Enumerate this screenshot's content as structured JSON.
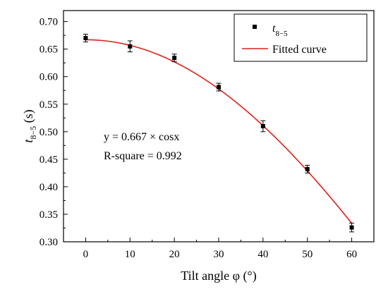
{
  "chart_data": {
    "type": "scatter",
    "x": [
      0,
      10,
      20,
      30,
      40,
      50,
      60
    ],
    "xlim": [
      -5,
      65
    ],
    "ylim": [
      0.3,
      0.72
    ],
    "xticks": [
      0,
      10,
      20,
      30,
      40,
      50,
      60
    ],
    "yticks": [
      0.3,
      0.35,
      0.4,
      0.45,
      0.5,
      0.55,
      0.6,
      0.65,
      0.7
    ],
    "xtick_labels": [
      "0",
      "10",
      "20",
      "30",
      "40",
      "50",
      "60"
    ],
    "ytick_labels": [
      "0.30",
      "0.35",
      "0.40",
      "0.45",
      "0.50",
      "0.55",
      "0.60",
      "0.65",
      "0.70"
    ],
    "xlabel": "Tilt angle φ (°)",
    "ylabel_main": "t",
    "ylabel_sub": "8−5",
    "ylabel_unit": " (s)",
    "grid": false,
    "legend_position": "top-right",
    "series": [
      {
        "name": "t",
        "name_sub": "8−5",
        "kind": "points",
        "color": "#000000",
        "values": [
          0.67,
          0.655,
          0.634,
          0.581,
          0.51,
          0.432,
          0.326
        ],
        "errors": [
          0.007,
          0.01,
          0.007,
          0.007,
          0.01,
          0.007,
          0.008
        ]
      },
      {
        "name": "Fitted curve",
        "kind": "curve",
        "color": "#e0201a",
        "amplitude": 0.667,
        "function": "cos"
      }
    ],
    "annotations": [
      "y = 0.667 × cosx",
      "R-square = 0.992"
    ]
  }
}
